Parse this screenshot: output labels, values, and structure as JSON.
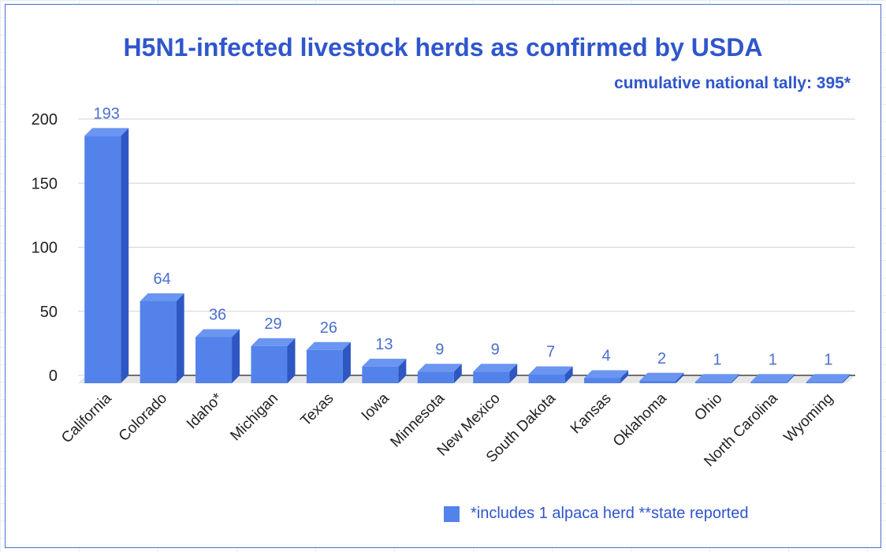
{
  "colors": {
    "bar_front": "#5282ea",
    "bar_top": "#6a95f0",
    "bar_side": "#2e57c4",
    "title": "#2f56cc",
    "label": "#4a6fcf",
    "grid": "#cfd3d8",
    "floor": "#e6e6e6"
  },
  "chart_data": {
    "type": "bar",
    "title": "H5N1-infected livestock herds as confirmed by USDA",
    "subtitle": "cumulative national tally: 395*",
    "categories": [
      "California",
      "Colorado",
      "Idaho*",
      "Michigan",
      "Texas",
      "Iowa",
      "Minnesota",
      "New Mexico",
      "South Dakota",
      "Kansas",
      "Oklahoma",
      "Ohio",
      "North Carolina",
      "Wyoming"
    ],
    "values": [
      193,
      64,
      36,
      29,
      26,
      13,
      9,
      9,
      7,
      4,
      2,
      1,
      1,
      1
    ],
    "yticks": [
      0,
      50,
      100,
      150,
      200
    ],
    "ylim": [
      0,
      200
    ],
    "xlabel": "",
    "ylabel": "",
    "grid": true,
    "legend": {
      "placement": "bottom",
      "entries": [
        "*includes 1 alpaca herd **state reported"
      ]
    }
  }
}
